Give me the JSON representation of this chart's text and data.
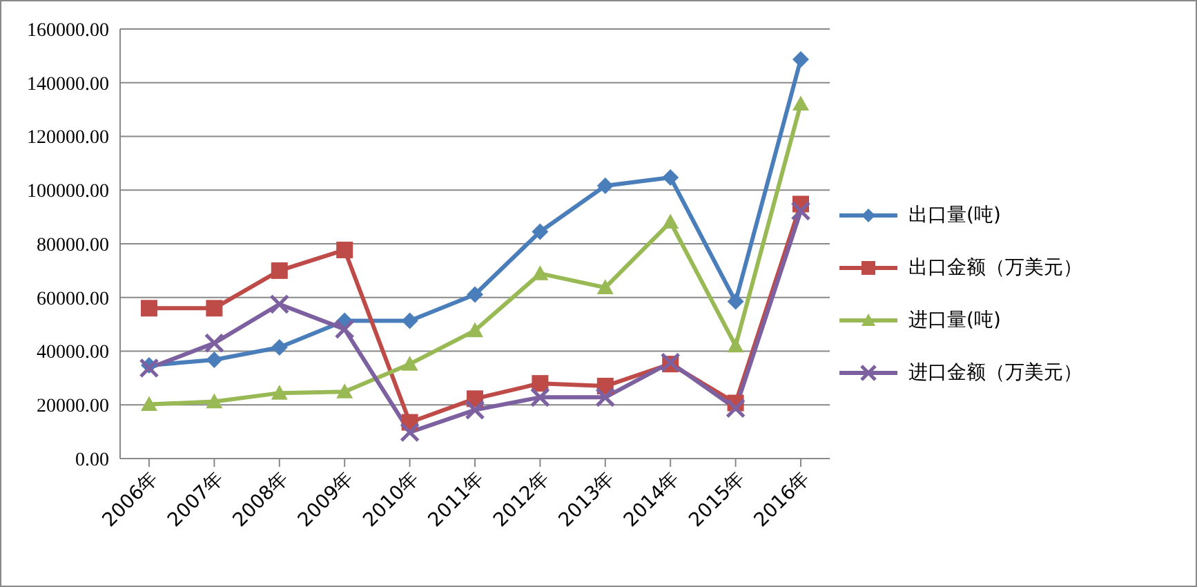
{
  "chart_data": {
    "type": "line",
    "categories": [
      "2006年",
      "2007年",
      "2008年",
      "2009年",
      "2010年",
      "2011年",
      "2012年",
      "2013年",
      "2014年",
      "2015年",
      "2016年"
    ],
    "series": [
      {
        "name": "出口量(吨)",
        "color": "#4a7ebb",
        "marker": "diamond",
        "values": [
          34700,
          36800,
          41400,
          51300,
          51300,
          61100,
          84500,
          101600,
          104700,
          58500,
          148700
        ]
      },
      {
        "name": "出口金额（万美元）",
        "color": "#be4b48",
        "marker": "square",
        "values": [
          56000,
          56000,
          70000,
          77700,
          13500,
          22300,
          28000,
          27000,
          35200,
          20700,
          94800
        ]
      },
      {
        "name": "进口量(吨)",
        "color": "#98b954",
        "marker": "triangle",
        "values": [
          20200,
          21200,
          24400,
          24900,
          35200,
          47700,
          68900,
          63700,
          88100,
          42000,
          132100
        ]
      },
      {
        "name": "进口金额（万美元）",
        "color": "#7d60a0",
        "marker": "cross",
        "values": [
          33700,
          43000,
          57500,
          48200,
          9800,
          18100,
          22800,
          22800,
          35800,
          18700,
          92200
        ]
      }
    ],
    "ylim": [
      0,
      160000
    ],
    "yticks": [
      {
        "value": 0,
        "label": "0.00"
      },
      {
        "value": 20000,
        "label": "20000.00"
      },
      {
        "value": 40000,
        "label": "40000.00"
      },
      {
        "value": 60000,
        "label": "60000.00"
      },
      {
        "value": 80000,
        "label": "80000.00"
      },
      {
        "value": 100000,
        "label": "100000.00"
      },
      {
        "value": 120000,
        "label": "120000.00"
      },
      {
        "value": 140000,
        "label": "140000.00"
      },
      {
        "value": 160000,
        "label": "160000.00"
      }
    ],
    "grid": "y",
    "legend": "right",
    "line_style": "solid"
  }
}
